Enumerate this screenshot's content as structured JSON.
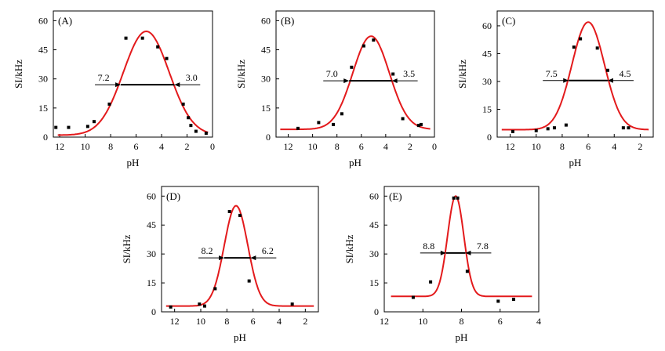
{
  "chart_data": [
    {
      "type": "scatter",
      "panel": "(A)",
      "xlabel": "pH",
      "ylabel": "SI/kHz",
      "xlim": [
        12.5,
        0
      ],
      "ylim": [
        0,
        65
      ],
      "xticks": [
        12,
        10,
        8,
        6,
        4,
        2,
        0
      ],
      "yticks": [
        0,
        15,
        30,
        45,
        60
      ],
      "points": [
        [
          12.3,
          5
        ],
        [
          11.3,
          5
        ],
        [
          9.8,
          5.5
        ],
        [
          9.3,
          8
        ],
        [
          8.1,
          17
        ],
        [
          6.8,
          51
        ],
        [
          5.5,
          51
        ],
        [
          4.3,
          46.5
        ],
        [
          3.6,
          40.5
        ],
        [
          2.3,
          17
        ],
        [
          1.9,
          10
        ],
        [
          1.7,
          6
        ],
        [
          1.3,
          3
        ],
        [
          0.5,
          2
        ]
      ],
      "fit": {
        "peak_x": 5.2,
        "peak_y": 54.5,
        "baseline": 1,
        "sigma": 1.8
      },
      "half": {
        "y": 27,
        "left_label": "7.2",
        "right_label": "3.0",
        "left_x": 7.2,
        "right_x": 3.0
      }
    },
    {
      "type": "scatter",
      "panel": "(B)",
      "xlabel": "pH",
      "ylabel": "SI/kHz",
      "xlim": [
        13,
        0
      ],
      "ylim": [
        0,
        65
      ],
      "xticks": [
        12,
        10,
        8,
        6,
        4,
        2,
        0
      ],
      "yticks": [
        0,
        15,
        30,
        45,
        60
      ],
      "points": [
        [
          11.2,
          4.5
        ],
        [
          9.5,
          7.5
        ],
        [
          8.3,
          6.5
        ],
        [
          7.6,
          12
        ],
        [
          6.8,
          36
        ],
        [
          5.8,
          47
        ],
        [
          5,
          50
        ],
        [
          3.4,
          32.5
        ],
        [
          2.6,
          9.5
        ],
        [
          1.3,
          6
        ],
        [
          1.1,
          6.5
        ]
      ],
      "fit": {
        "peak_x": 5.2,
        "peak_y": 52,
        "baseline": 4,
        "sigma": 1.5
      },
      "half": {
        "y": 29,
        "left_label": "7.0",
        "right_label": "3.5",
        "left_x": 7.0,
        "right_x": 3.5
      }
    },
    {
      "type": "scatter",
      "panel": "(C)",
      "xlabel": "pH",
      "ylabel": "SI/kHz",
      "xlim": [
        13,
        1
      ],
      "ylim": [
        0,
        68
      ],
      "xticks": [
        12,
        10,
        8,
        6,
        4,
        2
      ],
      "yticks": [
        0,
        15,
        30,
        45,
        60
      ],
      "points": [
        [
          11.8,
          3
        ],
        [
          10,
          3.5
        ],
        [
          9.1,
          4.5
        ],
        [
          8.6,
          5
        ],
        [
          7.7,
          6.5
        ],
        [
          7.1,
          48.5
        ],
        [
          6.6,
          53
        ],
        [
          5.3,
          48
        ],
        [
          4.5,
          36
        ],
        [
          3.3,
          5
        ],
        [
          2.9,
          5
        ]
      ],
      "fit": {
        "peak_x": 6.0,
        "peak_y": 62,
        "baseline": 4,
        "sigma": 1.25
      },
      "half": {
        "y": 30.5,
        "left_label": "7.5",
        "right_label": "4.5",
        "left_x": 7.5,
        "right_x": 4.5
      }
    },
    {
      "type": "scatter",
      "panel": "(D)",
      "xlabel": "pH",
      "ylabel": "SI/kHz",
      "xlim": [
        13,
        1
      ],
      "ylim": [
        0,
        65
      ],
      "xticks": [
        12,
        10,
        8,
        6,
        4,
        2
      ],
      "yticks": [
        0,
        15,
        30,
        45,
        60
      ],
      "points": [
        [
          12.3,
          2.5
        ],
        [
          10.1,
          4
        ],
        [
          9.7,
          3
        ],
        [
          8.9,
          12
        ],
        [
          7.8,
          52
        ],
        [
          7.0,
          50
        ],
        [
          6.3,
          16
        ],
        [
          3,
          4
        ]
      ],
      "fit": {
        "peak_x": 7.3,
        "peak_y": 55,
        "baseline": 3,
        "sigma": 0.9
      },
      "half": {
        "y": 28,
        "left_label": "8.2",
        "right_label": "6.2",
        "left_x": 8.2,
        "right_x": 6.2
      }
    },
    {
      "type": "scatter",
      "panel": "(E)",
      "xlabel": "pH",
      "ylabel": "SI/kHz",
      "xlim": [
        12,
        4
      ],
      "ylim": [
        0,
        65
      ],
      "xticks": [
        12,
        10,
        8,
        6,
        4
      ],
      "yticks": [
        0,
        15,
        30,
        45,
        60
      ],
      "points": [
        [
          10.5,
          7.5
        ],
        [
          9.6,
          15.5
        ],
        [
          8.4,
          59
        ],
        [
          8.2,
          59
        ],
        [
          7.7,
          21
        ],
        [
          6.1,
          5.5
        ],
        [
          5.3,
          6.5
        ]
      ],
      "fit": {
        "peak_x": 8.3,
        "peak_y": 60,
        "baseline": 8,
        "sigma": 0.42
      },
      "half": {
        "y": 30.5,
        "left_label": "8.8",
        "right_label": "7.8",
        "left_x": 8.8,
        "right_x": 7.8
      }
    }
  ]
}
